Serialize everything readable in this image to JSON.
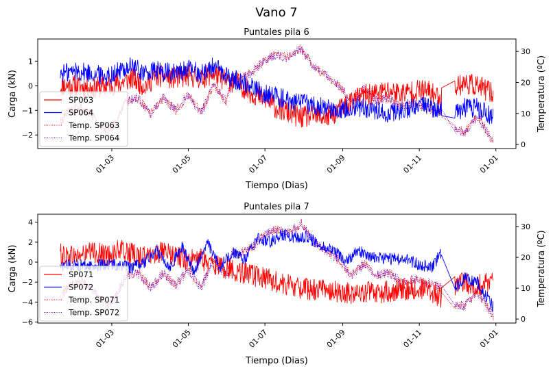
{
  "chart_data": [
    {
      "type": "line",
      "suptitle": "Vano 7",
      "title": "Puntales pila 6",
      "xlabel": "Tiempo (Dias)",
      "ylabel": "Carga (kN)",
      "ylabel_right": "Temperatura (ºC)",
      "x_unit": "day of year",
      "xlim": [
        0,
        381
      ],
      "ylim": [
        -2.55,
        1.9
      ],
      "ylim_right": [
        -1.3,
        34
      ],
      "xticks": [
        {
          "value": 59,
          "label": "01-03"
        },
        {
          "value": 120,
          "label": "01-05"
        },
        {
          "value": 181,
          "label": "01-07"
        },
        {
          "value": 243,
          "label": "01-09"
        },
        {
          "value": 304,
          "label": "01-11"
        },
        {
          "value": 365,
          "label": "01-01"
        }
      ],
      "yticks": [
        {
          "value": 1,
          "label": "1"
        },
        {
          "value": 0,
          "label": "0"
        },
        {
          "value": -1,
          "label": "−1"
        },
        {
          "value": -2,
          "label": "−2"
        }
      ],
      "yticks_right": [
        {
          "value": 0,
          "label": "0"
        },
        {
          "value": 10,
          "label": "10"
        },
        {
          "value": 20,
          "label": "20"
        },
        {
          "value": 30,
          "label": "30"
        }
      ],
      "legend": {
        "placement": "lower-left",
        "entries": [
          "SP063",
          "SP064",
          "Temp. SP063",
          "Temp. SP064"
        ]
      },
      "gap_days": [
        322,
        332
      ],
      "series": [
        {
          "name": "SP063",
          "axis": "left",
          "style": "solid",
          "color": "#ff0000",
          "x": [
            18,
            30,
            45,
            55,
            65,
            75,
            85,
            95,
            110,
            120,
            130,
            140,
            150,
            160,
            170,
            180,
            190,
            200,
            210,
            220,
            230,
            240,
            250,
            260,
            270,
            280,
            290,
            300,
            310,
            322,
            332,
            340,
            350,
            363
          ],
          "y": [
            0.0,
            0.0,
            -0.1,
            0.0,
            0.1,
            0.3,
            0.0,
            0.4,
            0.3,
            0.4,
            0.3,
            0.5,
            0.2,
            0.1,
            -0.3,
            -0.5,
            -0.9,
            -1.1,
            -1.3,
            -1.2,
            -1.3,
            -1.0,
            -0.6,
            -0.4,
            -0.3,
            -0.2,
            -0.3,
            -0.2,
            -0.2,
            -0.5,
            0.0,
            0.1,
            0.0,
            -0.3
          ],
          "noise": 0.45
        },
        {
          "name": "SP064",
          "axis": "left",
          "style": "solid",
          "color": "#0000ff",
          "x": [
            18,
            30,
            45,
            55,
            65,
            75,
            85,
            95,
            110,
            120,
            130,
            140,
            150,
            160,
            170,
            180,
            190,
            200,
            210,
            220,
            230,
            240,
            250,
            260,
            270,
            280,
            290,
            300,
            310,
            322,
            332,
            340,
            350,
            363
          ],
          "y": [
            0.5,
            0.6,
            0.5,
            0.4,
            0.6,
            0.8,
            0.5,
            0.6,
            0.5,
            0.7,
            0.5,
            0.8,
            0.4,
            0.2,
            0.0,
            -0.3,
            -0.4,
            -0.6,
            -0.7,
            -0.8,
            -0.9,
            -1.0,
            -0.8,
            -0.9,
            -1.0,
            -1.1,
            -1.0,
            -0.9,
            -0.8,
            -1.0,
            -1.2,
            -0.9,
            -0.9,
            -1.3
          ],
          "noise": 0.4
        },
        {
          "name": "Temp. SP063",
          "axis": "right",
          "style": "dotted",
          "color": "#ff0000",
          "x": [
            18,
            25,
            35,
            45,
            55,
            62,
            70,
            80,
            90,
            100,
            110,
            120,
            130,
            140,
            150,
            155,
            160,
            170,
            180,
            190,
            200,
            210,
            220,
            230,
            240,
            250,
            260,
            270,
            280,
            290,
            300,
            310,
            322,
            332,
            340,
            350,
            363
          ],
          "y": [
            7,
            11,
            12,
            9,
            4,
            7,
            14,
            15,
            10,
            15,
            11,
            16,
            10,
            19,
            14,
            22,
            21,
            23,
            27,
            29,
            28,
            31,
            25,
            22,
            19,
            14,
            18,
            14,
            15,
            12,
            13,
            12,
            10,
            5,
            4,
            9,
            1
          ],
          "noise": 1.5
        },
        {
          "name": "Temp. SP064",
          "axis": "right",
          "style": "dotted",
          "color": "#6a00c8",
          "x": [
            18,
            25,
            35,
            45,
            55,
            62,
            70,
            80,
            90,
            100,
            110,
            120,
            130,
            140,
            150,
            155,
            160,
            170,
            180,
            190,
            200,
            210,
            220,
            230,
            240,
            250,
            260,
            270,
            280,
            290,
            300,
            310,
            322,
            332,
            340,
            350,
            363
          ],
          "y": [
            7,
            11,
            12,
            9,
            4,
            7,
            14,
            15,
            10,
            15,
            11,
            16,
            10,
            19,
            14,
            22,
            21,
            23,
            27,
            29,
            28,
            31,
            25,
            22,
            19,
            14,
            18,
            14,
            15,
            12,
            13,
            12,
            10,
            5,
            4,
            9,
            1
          ],
          "noise": 1.5
        }
      ]
    },
    {
      "type": "line",
      "title": "Puntales pila 7",
      "xlabel": "Tiempo (Dias)",
      "ylabel": "Carga (kN)",
      "ylabel_right": "Temperatura (ºC)",
      "x_unit": "day of year",
      "xlim": [
        0,
        381
      ],
      "ylim": [
        -6.1,
        4.8
      ],
      "ylim_right": [
        -1.3,
        34
      ],
      "xticks": [
        {
          "value": 59,
          "label": "01-03"
        },
        {
          "value": 120,
          "label": "01-05"
        },
        {
          "value": 181,
          "label": "01-07"
        },
        {
          "value": 243,
          "label": "01-09"
        },
        {
          "value": 304,
          "label": "01-11"
        },
        {
          "value": 365,
          "label": "01-01"
        }
      ],
      "yticks": [
        {
          "value": 4,
          "label": "4"
        },
        {
          "value": 2,
          "label": "2"
        },
        {
          "value": 0,
          "label": "0"
        },
        {
          "value": -2,
          "label": "−2"
        },
        {
          "value": -4,
          "label": "−4"
        },
        {
          "value": -6,
          "label": "−6"
        }
      ],
      "yticks_right": [
        {
          "value": 0,
          "label": "0"
        },
        {
          "value": 10,
          "label": "10"
        },
        {
          "value": 20,
          "label": "20"
        },
        {
          "value": 30,
          "label": "30"
        }
      ],
      "legend": {
        "placement": "lower-left",
        "entries": [
          "SP071",
          "SP072",
          "Temp. SP071",
          "Temp. SP072"
        ]
      },
      "gap_days": [
        322,
        332
      ],
      "series": [
        {
          "name": "SP071",
          "axis": "left",
          "style": "solid",
          "color": "#ff0000",
          "x": [
            18,
            30,
            45,
            55,
            65,
            75,
            85,
            95,
            110,
            120,
            130,
            140,
            150,
            160,
            170,
            180,
            190,
            200,
            210,
            220,
            230,
            240,
            250,
            260,
            270,
            280,
            290,
            300,
            310,
            322,
            332,
            340,
            350,
            363
          ],
          "y": [
            0.8,
            0.6,
            1.0,
            0.7,
            1.2,
            0.8,
            0.5,
            1.0,
            0.6,
            0.2,
            0.3,
            -0.2,
            -0.6,
            -0.9,
            -1.3,
            -1.6,
            -2.0,
            -2.3,
            -2.6,
            -2.8,
            -2.6,
            -3.0,
            -3.2,
            -3.0,
            -3.1,
            -2.9,
            -2.7,
            -2.8,
            -2.6,
            -3.6,
            -2.2,
            -2.1,
            -2.3,
            -2.0
          ],
          "noise": 1.1
        },
        {
          "name": "SP072",
          "axis": "left",
          "style": "solid",
          "color": "#0000ff",
          "x": [
            18,
            30,
            45,
            55,
            65,
            75,
            85,
            95,
            105,
            115,
            125,
            135,
            145,
            155,
            165,
            175,
            185,
            195,
            205,
            215,
            225,
            235,
            245,
            255,
            265,
            275,
            285,
            295,
            305,
            314,
            322,
            332,
            340,
            350,
            363
          ],
          "y": [
            -0.4,
            -0.3,
            -0.4,
            -0.2,
            -0.3,
            -0.6,
            0.0,
            1.2,
            -0.5,
            1.5,
            -1.0,
            2.0,
            -0.5,
            1.0,
            0.2,
            2.5,
            2.0,
            2.8,
            2.5,
            2.6,
            1.6,
            1.3,
            0.0,
            1.2,
            0.5,
            0.4,
            0.3,
            0.2,
            -0.3,
            -0.5,
            1.0,
            -2.6,
            -1.6,
            -2.0,
            -4.5
          ],
          "noise": 0.6
        },
        {
          "name": "Temp. SP071",
          "axis": "right",
          "style": "dotted",
          "color": "#ff0000",
          "x": [
            18,
            25,
            35,
            45,
            55,
            62,
            70,
            80,
            90,
            100,
            110,
            120,
            130,
            140,
            150,
            155,
            160,
            170,
            180,
            190,
            200,
            210,
            220,
            230,
            240,
            250,
            260,
            270,
            280,
            290,
            300,
            310,
            322,
            332,
            340,
            350,
            363
          ],
          "y": [
            7,
            11,
            12,
            9,
            4,
            7,
            14,
            15,
            10,
            15,
            11,
            16,
            10,
            19,
            14,
            22,
            21,
            23,
            27,
            29,
            28,
            31,
            25,
            22,
            19,
            14,
            18,
            14,
            15,
            12,
            13,
            12,
            10,
            5,
            4,
            9,
            1
          ],
          "noise": 1.5
        },
        {
          "name": "Temp. SP072",
          "axis": "right",
          "style": "dotted",
          "color": "#6a00c8",
          "x": [
            18,
            25,
            35,
            45,
            55,
            62,
            70,
            80,
            90,
            100,
            110,
            120,
            130,
            140,
            150,
            155,
            160,
            170,
            180,
            190,
            200,
            210,
            220,
            230,
            240,
            250,
            260,
            270,
            280,
            290,
            300,
            310,
            322,
            332,
            340,
            350,
            363
          ],
          "y": [
            7,
            11,
            12,
            9,
            4,
            7,
            14,
            15,
            10,
            15,
            11,
            16,
            10,
            19,
            14,
            22,
            21,
            23,
            27,
            29,
            28,
            31,
            25,
            22,
            19,
            14,
            18,
            14,
            15,
            12,
            13,
            12,
            10,
            5,
            4,
            9,
            1
          ],
          "noise": 1.5
        }
      ]
    }
  ]
}
